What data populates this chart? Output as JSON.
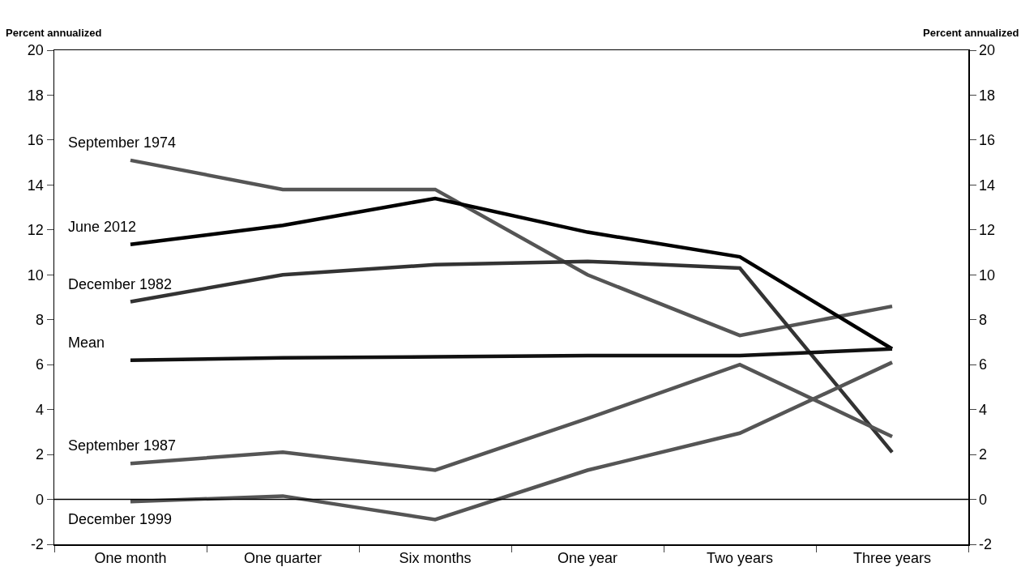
{
  "chart_data": {
    "type": "line",
    "ylabel": "Percent annualized",
    "y2label": "Percent annualized",
    "categories": [
      "One month",
      "One quarter",
      "Six months",
      "One year",
      "Two years",
      "Three years"
    ],
    "series": [
      {
        "name": "September 1974",
        "color": "#555555",
        "values": [
          15.1,
          13.8,
          13.8,
          10.0,
          7.3,
          8.6
        ]
      },
      {
        "name": "June 2012",
        "color": "#000000",
        "values": [
          11.35,
          12.2,
          13.4,
          11.9,
          10.8,
          6.7
        ]
      },
      {
        "name": "December 1982",
        "color": "#333333",
        "values": [
          8.8,
          10.0,
          10.45,
          10.6,
          10.3,
          2.1
        ]
      },
      {
        "name": "Mean",
        "color": "#111111",
        "values": [
          6.2,
          6.3,
          6.35,
          6.4,
          6.4,
          6.7
        ]
      },
      {
        "name": "September 1987",
        "color": "#555555",
        "values": [
          1.6,
          2.1,
          1.3,
          3.6,
          6.0,
          2.8
        ]
      },
      {
        "name": "December 1999",
        "color": "#555555",
        "values": [
          -0.1,
          0.15,
          -0.9,
          1.3,
          2.95,
          6.1
        ]
      }
    ],
    "ylim": [
      -2,
      20
    ],
    "yticks": [
      -2,
      0,
      2,
      4,
      6,
      8,
      10,
      12,
      14,
      16,
      18,
      20
    ],
    "y2lim": [
      -2,
      20
    ],
    "y2ticks": [
      -2,
      0,
      2,
      4,
      6,
      8,
      10,
      12,
      14,
      16,
      18,
      20
    ],
    "ref_lines": [
      {
        "axis": "y",
        "value": 0
      }
    ],
    "grid": false,
    "legend": false,
    "marker": "none",
    "line_style": "solid"
  }
}
